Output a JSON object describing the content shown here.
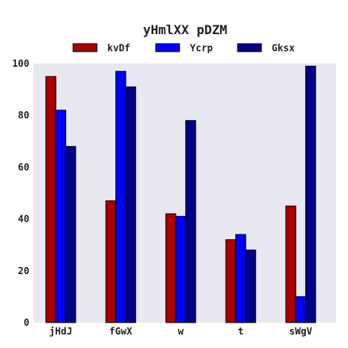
{
  "chart_data": {
    "type": "bar",
    "title": "yHmlXX pDZM",
    "xlabel": "",
    "ylabel": "",
    "categories": [
      "jHdJ",
      "fGwX",
      "w",
      "t",
      "sWgV"
    ],
    "series": [
      {
        "name": "kvDf",
        "color": "#aa0000",
        "values": [
          95,
          47,
          42,
          32,
          45
        ]
      },
      {
        "name": "Ycrp",
        "color": "#0000ff",
        "values": [
          82,
          97,
          41,
          34,
          10
        ]
      },
      {
        "name": "Gksx",
        "color": "#00008b",
        "values": [
          68,
          91,
          78,
          28,
          99
        ]
      }
    ],
    "ylim": [
      0,
      100
    ],
    "yticks": [
      0,
      20,
      40,
      60,
      80,
      100
    ],
    "grid": false,
    "legend_position": "top-center",
    "plot_background": "#e8e8f0"
  }
}
